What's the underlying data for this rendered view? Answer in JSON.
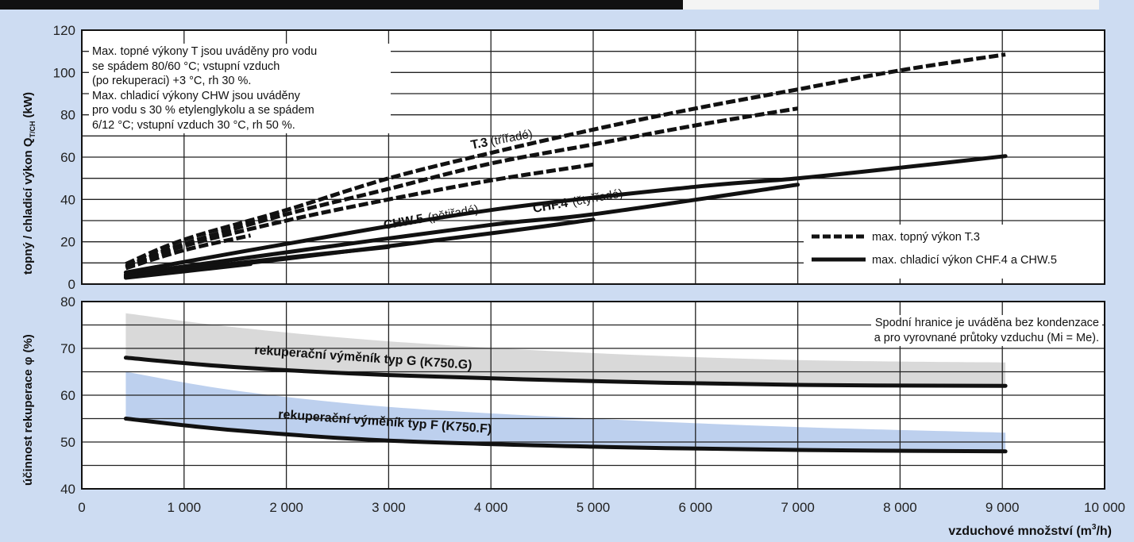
{
  "chart_data": [
    {
      "type": "line",
      "ylabel": "topný / chladicí výkon Q",
      "ylabel_sub": "T/CH",
      "ylabel_unit": "(kW)",
      "ylim": [
        0,
        120
      ],
      "yticks": [
        0,
        20,
        40,
        60,
        80,
        100,
        120
      ],
      "xlim": [
        0,
        10000
      ],
      "grid": true,
      "note_lines": [
        "Max. topné výkony T jsou uváděny pro vodu",
        "se spádem 80/60 °C; vstupní vzduch",
        "(po rekuperaci) +3 °C, rh 30 %.",
        "Max. chladicí výkony CHW jsou uváděny",
        "pro vodu s 30 % etylenglykolu a se spádem",
        "6/12 °C; vstupní vzduch 30 °C, rh 50 %."
      ],
      "labels": {
        "t3_bold": "T.3",
        "t3_normal": "(třířadé)",
        "chw5_bold": "CHW.5",
        "chw5_normal": "(pětiřadé)",
        "chf4_bold": "CHF.4",
        "chf4_normal": "(čtyřřadé)"
      },
      "legend": [
        {
          "label": "max. topný výkon T.3",
          "style": "dashed"
        },
        {
          "label": "max. chladicí výkon CHF.4 a CHW.5",
          "style": "solid"
        }
      ],
      "legend_position": "bottom-right",
      "series": [
        {
          "style": "dashed",
          "x": [
            430,
            1000,
            2000,
            3000,
            4000,
            5000,
            6000,
            7000,
            8000,
            9030
          ],
          "y": [
            9.5,
            21,
            35,
            50,
            62,
            73,
            83,
            92,
            101,
            108.5
          ]
        },
        {
          "style": "dashed",
          "x": [
            430,
            1000,
            2000,
            3000,
            4000,
            5000,
            6000,
            7000
          ],
          "y": [
            8.5,
            19,
            33,
            45,
            57,
            66,
            75,
            83
          ]
        },
        {
          "style": "dashed",
          "x": [
            430,
            1000,
            2000,
            3000,
            4000,
            5000
          ],
          "y": [
            8,
            18,
            30,
            40,
            49,
            56.5
          ]
        },
        {
          "style": "dashed",
          "x": [
            430,
            1000,
            1650
          ],
          "y": [
            7.5,
            16,
            23
          ]
        },
        {
          "style": "solid",
          "x": [
            430,
            2000,
            4000,
            6000,
            7000,
            8000,
            9030
          ],
          "y": [
            5.5,
            19,
            35,
            46,
            50,
            55,
            60.5
          ]
        },
        {
          "style": "solid",
          "x": [
            430,
            2000,
            4000,
            5000,
            7000
          ],
          "y": [
            4.5,
            15,
            28,
            33,
            47
          ]
        },
        {
          "style": "solid",
          "x": [
            430,
            2000,
            4000,
            5000
          ],
          "y": [
            4,
            12,
            24,
            30.5
          ]
        },
        {
          "style": "solid",
          "x": [
            430,
            1000,
            2000,
            3000
          ],
          "y": [
            3.5,
            7,
            12.5,
            17.5
          ]
        },
        {
          "style": "solid",
          "x": [
            430,
            1000,
            1650
          ],
          "y": [
            3,
            6,
            9.5
          ]
        }
      ]
    },
    {
      "type": "area",
      "ylabel": "účinnost rekuperace",
      "ylabel_symbol": "φ",
      "ylabel_unit": "(%)",
      "ylim": [
        40,
        80
      ],
      "yticks": [
        40,
        50,
        60,
        70,
        80
      ],
      "xlim": [
        0,
        10000
      ],
      "xticks": [
        "0",
        "1 000",
        "2 000",
        "3 000",
        "4 000",
        "5 000",
        "6 000",
        "7 000",
        "8 000",
        "9 000",
        "10 000"
      ],
      "xlabel": "vzduchové množství (m",
      "xlabel_sup": "3",
      "xlabel_end": "/h)",
      "grid": true,
      "note_lines": [
        "Spodní hranice je uváděna bez kondenzace",
        "a pro vyrovnané průtoky vzduchu (Mi = Me)."
      ],
      "bands": [
        {
          "color": "#d9d9d9",
          "x": [
            430,
            1500,
            3000,
            5000,
            7000,
            9030
          ],
          "upper": [
            77.5,
            74.5,
            71.5,
            69,
            67.5,
            67
          ],
          "lower": [
            68,
            66,
            64.3,
            63,
            62.2,
            62
          ]
        },
        {
          "color": "#bdd0ee",
          "x": [
            430,
            1500,
            3000,
            5000,
            7000,
            9030
          ],
          "upper": [
            65,
            61,
            57.5,
            55,
            53.2,
            52
          ],
          "lower": [
            55,
            52.5,
            50.3,
            49,
            48.3,
            48
          ]
        }
      ],
      "series": [
        {
          "name": "rekuperační výměník typ G (K750.G)",
          "x": [
            430,
            1500,
            3000,
            5000,
            7000,
            9030
          ],
          "y": [
            68,
            66,
            64.3,
            63,
            62.2,
            62
          ]
        },
        {
          "name": "rekuperační výměník typ F (K750.F)",
          "x": [
            430,
            1500,
            3000,
            5000,
            7000,
            9030
          ],
          "y": [
            55,
            52.5,
            50.3,
            49,
            48.3,
            48
          ]
        }
      ]
    }
  ]
}
